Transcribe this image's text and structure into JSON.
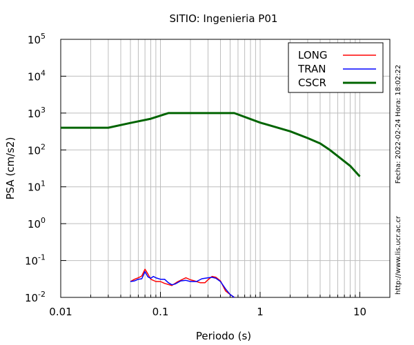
{
  "chart_data": {
    "type": "line",
    "title": "SITIO: Ingenieria P01",
    "xlabel": "Periodo (s)",
    "ylabel": "PSA (cm/s2)",
    "x_scale": "log",
    "y_scale": "log",
    "xlim": [
      0.01,
      20
    ],
    "ylim": [
      0.01,
      100000
    ],
    "grid": true,
    "legend_position": "top-right",
    "x_ticks": [
      {
        "value": 0.01,
        "label": "0.01"
      },
      {
        "value": 0.1,
        "label": "0.1"
      },
      {
        "value": 1,
        "label": "1"
      },
      {
        "value": 10,
        "label": "10"
      }
    ],
    "y_ticks": [
      {
        "value": 0.01,
        "base": "10",
        "exp": "-2"
      },
      {
        "value": 0.1,
        "base": "10",
        "exp": "-1"
      },
      {
        "value": 1,
        "base": "10",
        "exp": "0"
      },
      {
        "value": 10,
        "base": "10",
        "exp": "1"
      },
      {
        "value": 100,
        "base": "10",
        "exp": "2"
      },
      {
        "value": 1000,
        "base": "10",
        "exp": "3"
      },
      {
        "value": 10000,
        "base": "10",
        "exp": "4"
      },
      {
        "value": 100000,
        "base": "10",
        "exp": "5"
      }
    ],
    "series": [
      {
        "name": "LONG",
        "color": "#ff0000",
        "points": [
          [
            0.05,
            0.027
          ],
          [
            0.055,
            0.031
          ],
          [
            0.06,
            0.034
          ],
          [
            0.065,
            0.038
          ],
          [
            0.07,
            0.058
          ],
          [
            0.075,
            0.043
          ],
          [
            0.08,
            0.031
          ],
          [
            0.09,
            0.027
          ],
          [
            0.1,
            0.027
          ],
          [
            0.11,
            0.024
          ],
          [
            0.13,
            0.021
          ],
          [
            0.15,
            0.027
          ],
          [
            0.18,
            0.034
          ],
          [
            0.2,
            0.03
          ],
          [
            0.22,
            0.028
          ],
          [
            0.25,
            0.025
          ],
          [
            0.28,
            0.025
          ],
          [
            0.3,
            0.03
          ],
          [
            0.33,
            0.037
          ],
          [
            0.36,
            0.035
          ],
          [
            0.4,
            0.028
          ],
          [
            0.45,
            0.015
          ],
          [
            0.5,
            0.012
          ],
          [
            0.55,
            0.01
          ]
        ]
      },
      {
        "name": "TRAN",
        "color": "#0000ff",
        "points": [
          [
            0.05,
            0.027
          ],
          [
            0.055,
            0.028
          ],
          [
            0.06,
            0.031
          ],
          [
            0.065,
            0.032
          ],
          [
            0.07,
            0.05
          ],
          [
            0.075,
            0.036
          ],
          [
            0.08,
            0.033
          ],
          [
            0.085,
            0.037
          ],
          [
            0.09,
            0.034
          ],
          [
            0.1,
            0.031
          ],
          [
            0.11,
            0.031
          ],
          [
            0.12,
            0.025
          ],
          [
            0.13,
            0.022
          ],
          [
            0.14,
            0.023
          ],
          [
            0.16,
            0.028
          ],
          [
            0.18,
            0.029
          ],
          [
            0.2,
            0.027
          ],
          [
            0.23,
            0.027
          ],
          [
            0.26,
            0.032
          ],
          [
            0.3,
            0.034
          ],
          [
            0.33,
            0.035
          ],
          [
            0.36,
            0.033
          ],
          [
            0.4,
            0.027
          ],
          [
            0.45,
            0.017
          ],
          [
            0.5,
            0.012
          ],
          [
            0.55,
            0.01
          ]
        ]
      },
      {
        "name": "CSCR",
        "color": "#006400",
        "points": [
          [
            0.01,
            400
          ],
          [
            0.03,
            400
          ],
          [
            0.05,
            540
          ],
          [
            0.08,
            700
          ],
          [
            0.12,
            1000
          ],
          [
            0.55,
            1000
          ],
          [
            1.0,
            550
          ],
          [
            2.0,
            320
          ],
          [
            3.0,
            210
          ],
          [
            4.0,
            150
          ],
          [
            5.0,
            100
          ],
          [
            6.0,
            68
          ],
          [
            8.0,
            37
          ],
          [
            10.0,
            19
          ]
        ]
      }
    ],
    "side_labels": {
      "timestamp": "Fecha: 2022-02-24 Hora: 18:02:22",
      "website": "http://www.lis.ucr.ac.cr"
    }
  }
}
